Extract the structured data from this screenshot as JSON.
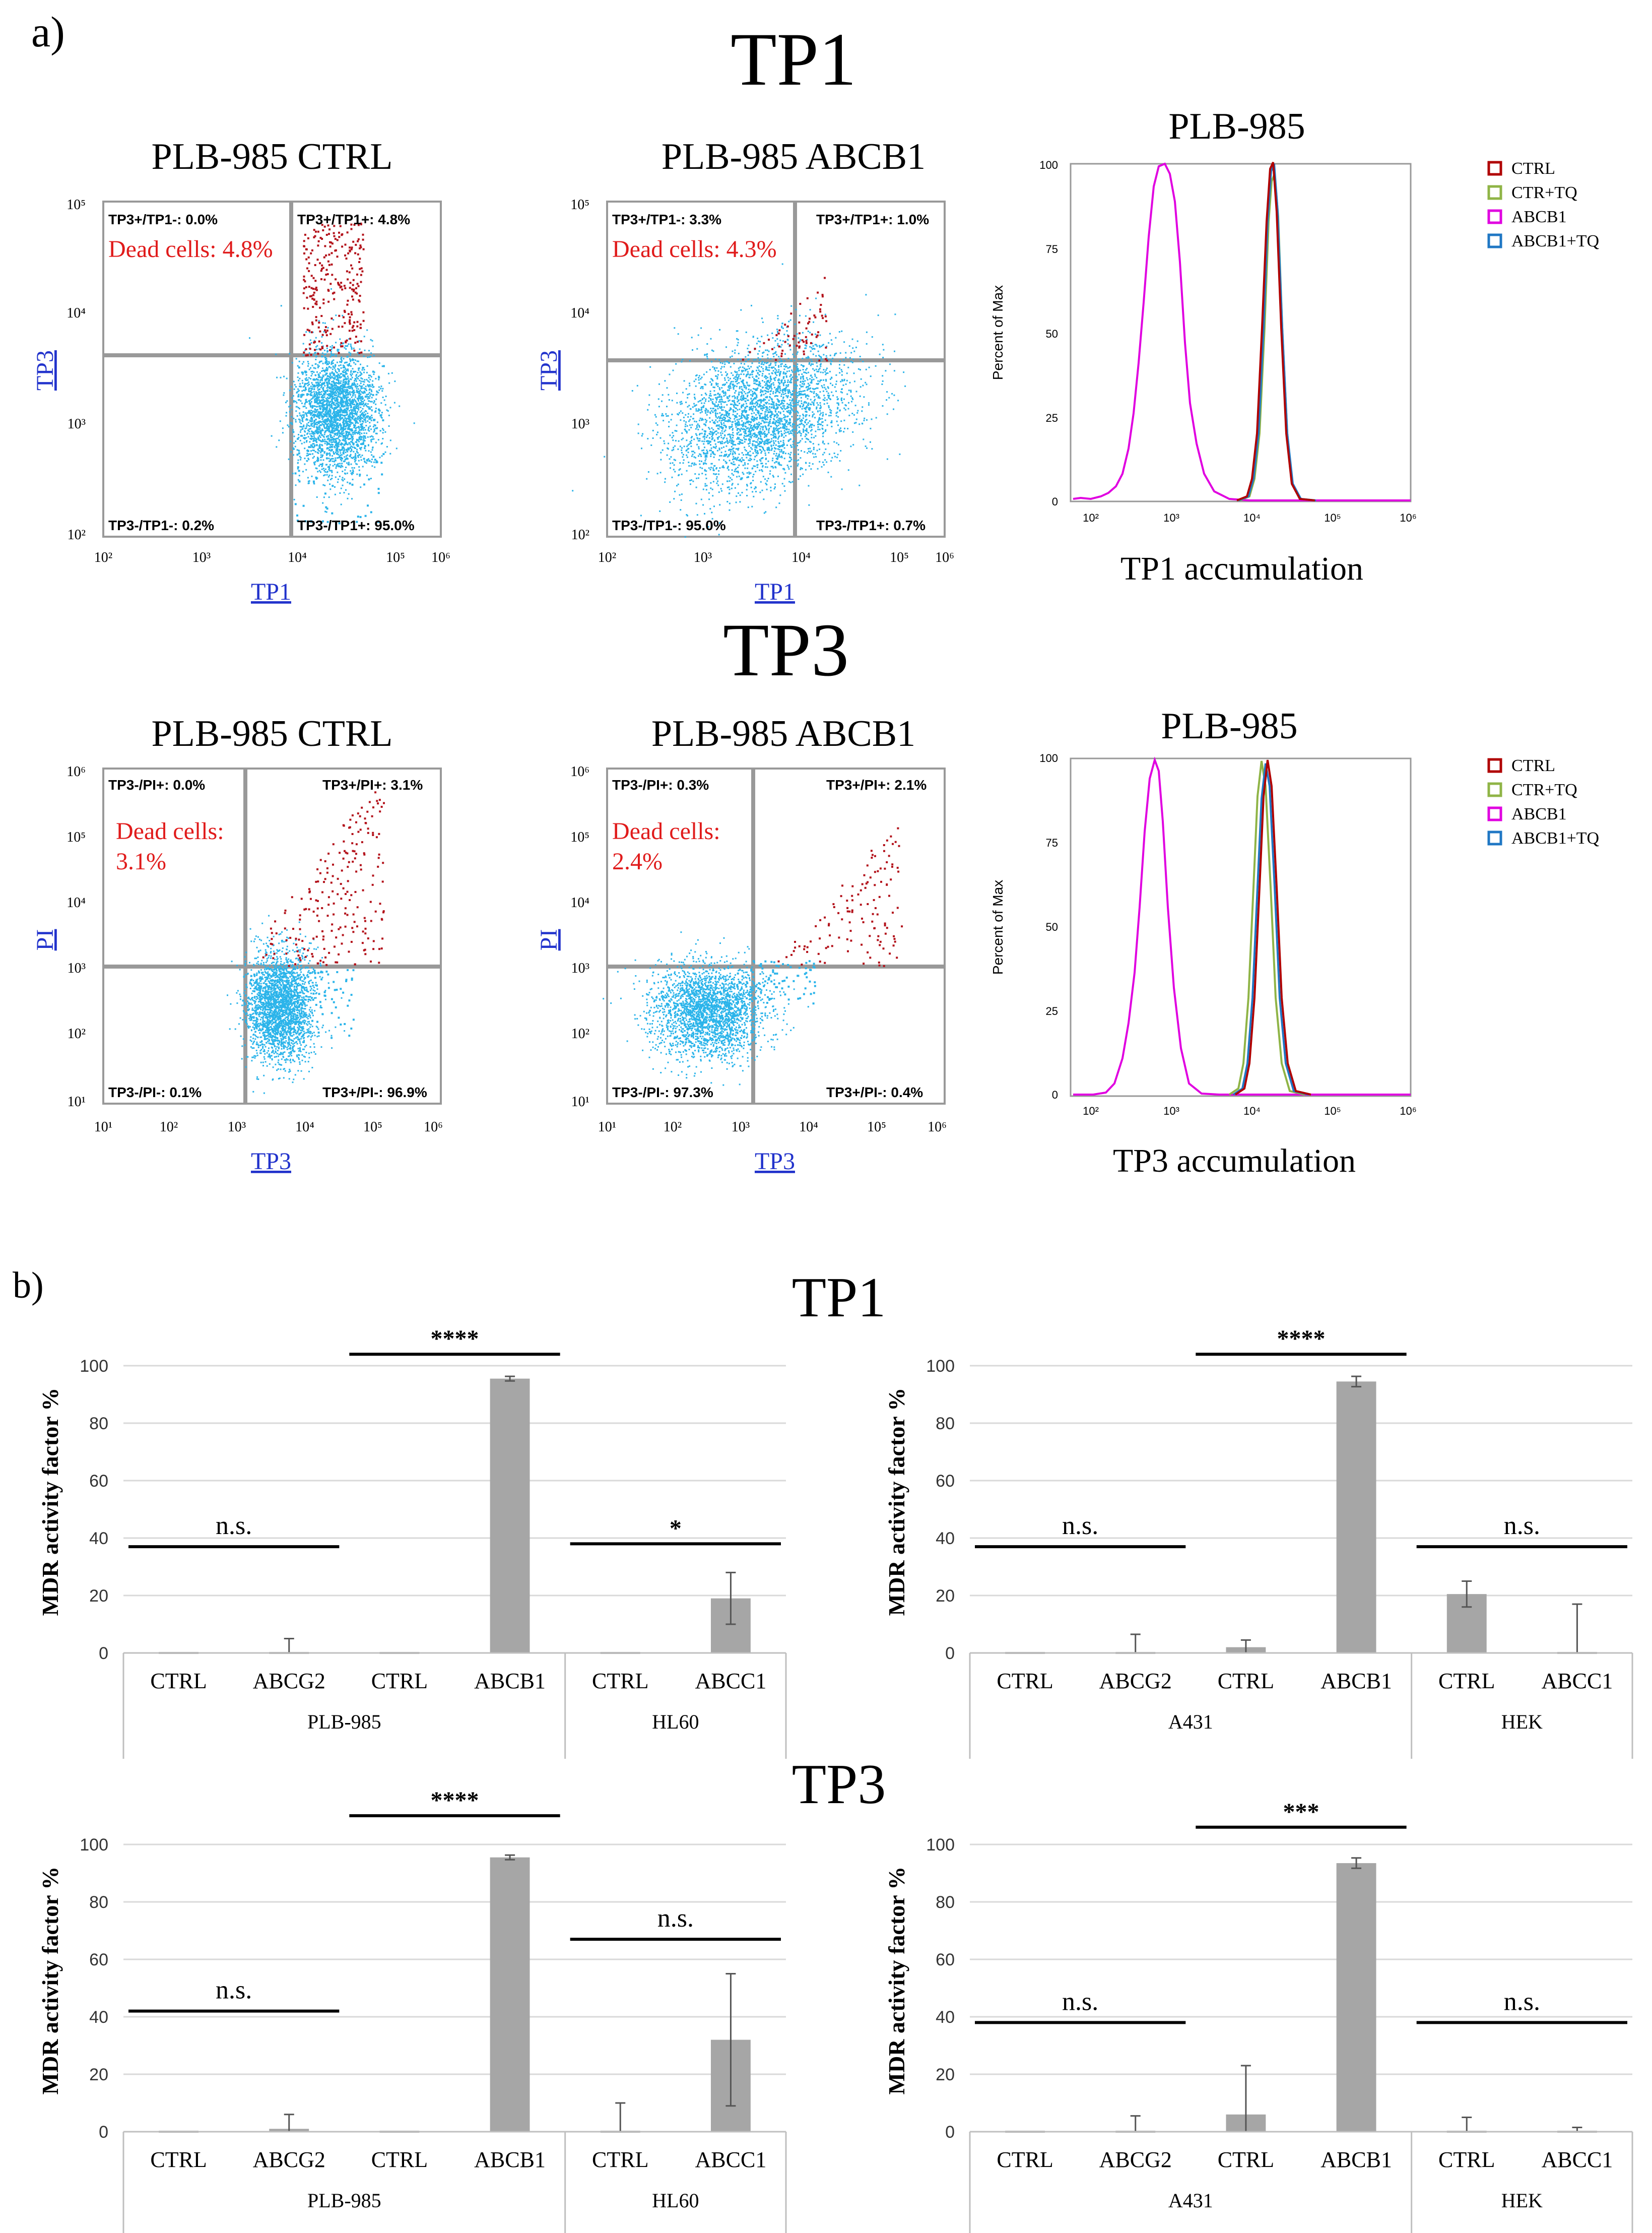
{
  "panel_a": {
    "label": "a)",
    "sections": [
      {
        "title": "TP1",
        "scatter": [
          {
            "title": "PLB-985 CTRL",
            "xlabel": "TP1",
            "ylabel": "TP3",
            "xticks": [
              "10²",
              "10³",
              "10⁴",
              "10⁵",
              "10⁶"
            ],
            "yticks": [
              "10⁵",
              "10⁴",
              "10³",
              "10²"
            ],
            "quadrants": {
              "ul": "TP3+/TP1-: 0.0%",
              "ur": "TP3+/TP1+: 4.8%",
              "ll": "TP3-/TP1-: 0.2%",
              "lr": "TP3-/TP1+: 95.0%"
            },
            "dead_cells": "Dead cells: 4.8%"
          },
          {
            "title": "PLB-985 ABCB1",
            "xlabel": "TP1",
            "ylabel": "TP3",
            "xticks": [
              "10²",
              "10³",
              "10⁴",
              "10⁵",
              "10⁶"
            ],
            "yticks": [
              "10⁵",
              "10⁴",
              "10³",
              "10²"
            ],
            "quadrants": {
              "ul": "TP3+/TP1-: 3.3%",
              "ur": "TP3+/TP1+: 1.0%",
              "ll": "TP3-/TP1-: 95.0%",
              "lr": "TP3-/TP1+: 0.7%"
            },
            "dead_cells": "Dead cells: 4.3%"
          }
        ],
        "histogram": {
          "title": "PLB-985",
          "xlabel": "TP1 accumulation",
          "ylabel": "Percent of Max",
          "yticks": [
            "100",
            "75",
            "50",
            "25",
            "0"
          ],
          "xticks": [
            "10²",
            "10³",
            "10⁴",
            "10⁵",
            "10⁶"
          ],
          "legend": [
            {
              "label": "CTRL",
              "color": "#b00000"
            },
            {
              "label": "CTR+TQ",
              "color": "#8fb446"
            },
            {
              "label": "ABCB1",
              "color": "#e000e0"
            },
            {
              "label": "ABCB1+TQ",
              "color": "#1f77c4"
            }
          ]
        }
      },
      {
        "title": "TP3",
        "scatter": [
          {
            "title": "PLB-985 CTRL",
            "xlabel": "TP3",
            "ylabel": "PI",
            "xticks": [
              "10¹",
              "10²",
              "10³",
              "10⁴",
              "10⁵",
              "10⁶"
            ],
            "yticks": [
              "10⁶",
              "10⁵",
              "10⁴",
              "10³",
              "10²",
              "10¹"
            ],
            "quadrants": {
              "ul": "TP3-/PI+: 0.0%",
              "ur": "TP3+/PI+: 3.1%",
              "ll": "TP3-/PI-: 0.1%",
              "lr": "TP3+/PI-: 96.9%"
            },
            "dead_cells_line1": "Dead cells:",
            "dead_cells_line2": "3.1%"
          },
          {
            "title": "PLB-985 ABCB1",
            "xlabel": "TP3",
            "ylabel": "PI",
            "xticks": [
              "10¹",
              "10²",
              "10³",
              "10⁴",
              "10⁵",
              "10⁶"
            ],
            "yticks": [
              "10⁶",
              "10⁵",
              "10⁴",
              "10³",
              "10²",
              "10¹"
            ],
            "quadrants": {
              "ul": "TP3-/PI+: 0.3%",
              "ur": "TP3+/PI+: 2.1%",
              "ll": "TP3-/PI-: 97.3%",
              "lr": "TP3+/PI-: 0.4%"
            },
            "dead_cells_line1": "Dead cells:",
            "dead_cells_line2": "2.4%"
          }
        ],
        "histogram": {
          "title": "PLB-985",
          "xlabel": "TP3 accumulation",
          "ylabel": "Percent of Max",
          "yticks": [
            "100",
            "75",
            "50",
            "25",
            "0"
          ],
          "xticks": [
            "10²",
            "10³",
            "10⁴",
            "10⁵",
            "10⁶"
          ],
          "legend": [
            {
              "label": "CTRL",
              "color": "#b00000"
            },
            {
              "label": "CTR+TQ",
              "color": "#8fb446"
            },
            {
              "label": "ABCB1",
              "color": "#e000e0"
            },
            {
              "label": "ABCB1+TQ",
              "color": "#1f77c4"
            }
          ]
        }
      }
    ]
  },
  "panel_b": {
    "label": "b)",
    "row_titles": [
      "TP1",
      "TP3"
    ]
  },
  "chart_data": [
    {
      "type": "bar",
      "section": "TP1",
      "title": "",
      "ylabel": "MDR activity factor %",
      "ylim": [
        0,
        100
      ],
      "yticks": [
        0,
        20,
        40,
        60,
        80,
        100
      ],
      "categories": [
        "CTRL",
        "ABCG2",
        "CTRL",
        "ABCB1",
        "CTRL",
        "ABCC1"
      ],
      "groups": [
        {
          "label": "PLB-985",
          "span": 4
        },
        {
          "label": "HL60",
          "span": 2
        }
      ],
      "values": [
        0,
        0,
        0,
        95.5,
        0,
        19
      ],
      "errors": [
        0,
        5,
        0,
        0.8,
        0,
        9
      ],
      "significance": [
        {
          "from": 0,
          "to": 1,
          "label": "n.s.",
          "y": 37
        },
        {
          "from": 2,
          "to": 3,
          "label": "****",
          "y": 104
        },
        {
          "from": 4,
          "to": 5,
          "label": "*",
          "y": 38
        }
      ]
    },
    {
      "type": "bar",
      "section": "TP1",
      "title": "",
      "ylabel": "MDR activity factor %",
      "ylim": [
        0,
        100
      ],
      "yticks": [
        0,
        20,
        40,
        60,
        80,
        100
      ],
      "categories": [
        "CTRL",
        "ABCG2",
        "CTRL",
        "ABCB1",
        "CTRL",
        "ABCC1"
      ],
      "groups": [
        {
          "label": "A431",
          "span": 4
        },
        {
          "label": "HEK",
          "span": 2
        }
      ],
      "values": [
        0,
        0,
        2,
        94.5,
        20.5,
        0
      ],
      "errors": [
        0,
        6.5,
        2.5,
        1.8,
        4.5,
        17
      ],
      "significance": [
        {
          "from": 0,
          "to": 1,
          "label": "n.s.",
          "y": 37
        },
        {
          "from": 2,
          "to": 3,
          "label": "****",
          "y": 104
        },
        {
          "from": 4,
          "to": 5,
          "label": "n.s.",
          "y": 37
        }
      ]
    },
    {
      "type": "bar",
      "section": "TP3",
      "title": "",
      "ylabel": "MDR activity factor %",
      "ylim": [
        0,
        100
      ],
      "yticks": [
        0,
        20,
        40,
        60,
        80,
        100
      ],
      "categories": [
        "CTRL",
        "ABCG2",
        "CTRL",
        "ABCB1",
        "CTRL",
        "ABCC1"
      ],
      "groups": [
        {
          "label": "PLB-985",
          "span": 4
        },
        {
          "label": "HL60",
          "span": 2
        }
      ],
      "values": [
        0,
        1,
        0,
        95.5,
        0,
        32
      ],
      "errors": [
        0,
        5,
        0,
        0.8,
        10,
        23
      ],
      "significance": [
        {
          "from": 0,
          "to": 1,
          "label": "n.s.",
          "y": 42
        },
        {
          "from": 2,
          "to": 3,
          "label": "****",
          "y": 110
        },
        {
          "from": 4,
          "to": 5,
          "label": "n.s.",
          "y": 67
        }
      ]
    },
    {
      "type": "bar",
      "section": "TP3",
      "title": "",
      "ylabel": "MDR activity factor %",
      "ylim": [
        0,
        100
      ],
      "yticks": [
        0,
        20,
        40,
        60,
        80,
        100
      ],
      "categories": [
        "CTRL",
        "ABCG2",
        "CTRL",
        "ABCB1",
        "CTRL",
        "ABCC1"
      ],
      "groups": [
        {
          "label": "A431",
          "span": 4
        },
        {
          "label": "HEK",
          "span": 2
        }
      ],
      "values": [
        0,
        0,
        6,
        93.5,
        0,
        0
      ],
      "errors": [
        0,
        5.5,
        17,
        1.8,
        5,
        1.5
      ],
      "significance": [
        {
          "from": 0,
          "to": 1,
          "label": "n.s.",
          "y": 38
        },
        {
          "from": 2,
          "to": 3,
          "label": "***",
          "y": 106
        },
        {
          "from": 4,
          "to": 5,
          "label": "n.s.",
          "y": 38
        }
      ]
    }
  ]
}
